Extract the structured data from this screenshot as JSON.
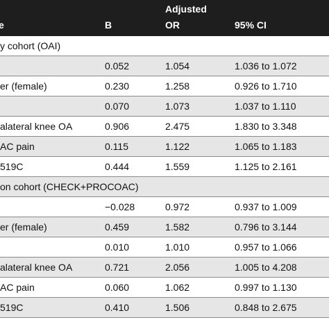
{
  "header": {
    "col_name": "e",
    "col_b": "B",
    "col_or_line1": "Adjusted",
    "col_or_line2": "OR",
    "col_ci": "95% CI"
  },
  "rows": [
    {
      "type": "section",
      "label": "y cohort (OAI)"
    },
    {
      "name": "",
      "b": "0.052",
      "or": "1.054",
      "ci": "1.036 to 1.072"
    },
    {
      "name": "er (female)",
      "b": "0.230",
      "or": "1.258",
      "ci": "0.926 to 1.710"
    },
    {
      "name": "",
      "b": "0.070",
      "or": "1.073",
      "ci": "1.037 to 1.110"
    },
    {
      "name": "alateral knee OA",
      "b": "0.906",
      "or": "2.475",
      "ci": "1.830 to 3.348"
    },
    {
      "name": "AC pain",
      "b": "0.115",
      "or": "1.122",
      "ci": "1.065 to 1.183"
    },
    {
      "name": "519C",
      "b": "0.444",
      "or": "1.559",
      "ci": "1.125 to 2.161"
    },
    {
      "type": "section",
      "label": "on cohort (CHECK+PROCOAC)"
    },
    {
      "name": "",
      "b": "−0.028",
      "or": "0.972",
      "ci": "0.937 to 1.009"
    },
    {
      "name": "er (female)",
      "b": "0.459",
      "or": "1.582",
      "ci": "0.796 to 3.144"
    },
    {
      "name": "",
      "b": "0.010",
      "or": "1.010",
      "ci": "0.957 to 1.066"
    },
    {
      "name": "alateral knee OA",
      "b": "0.721",
      "or": "2.056",
      "ci": "1.005 to 4.208"
    },
    {
      "name": "AC pain",
      "b": "0.060",
      "or": "1.062",
      "ci": "0.997 to 1.130"
    },
    {
      "name": "519C",
      "b": "0.410",
      "or": "1.506",
      "ci": "0.848 to 2.675"
    }
  ]
}
